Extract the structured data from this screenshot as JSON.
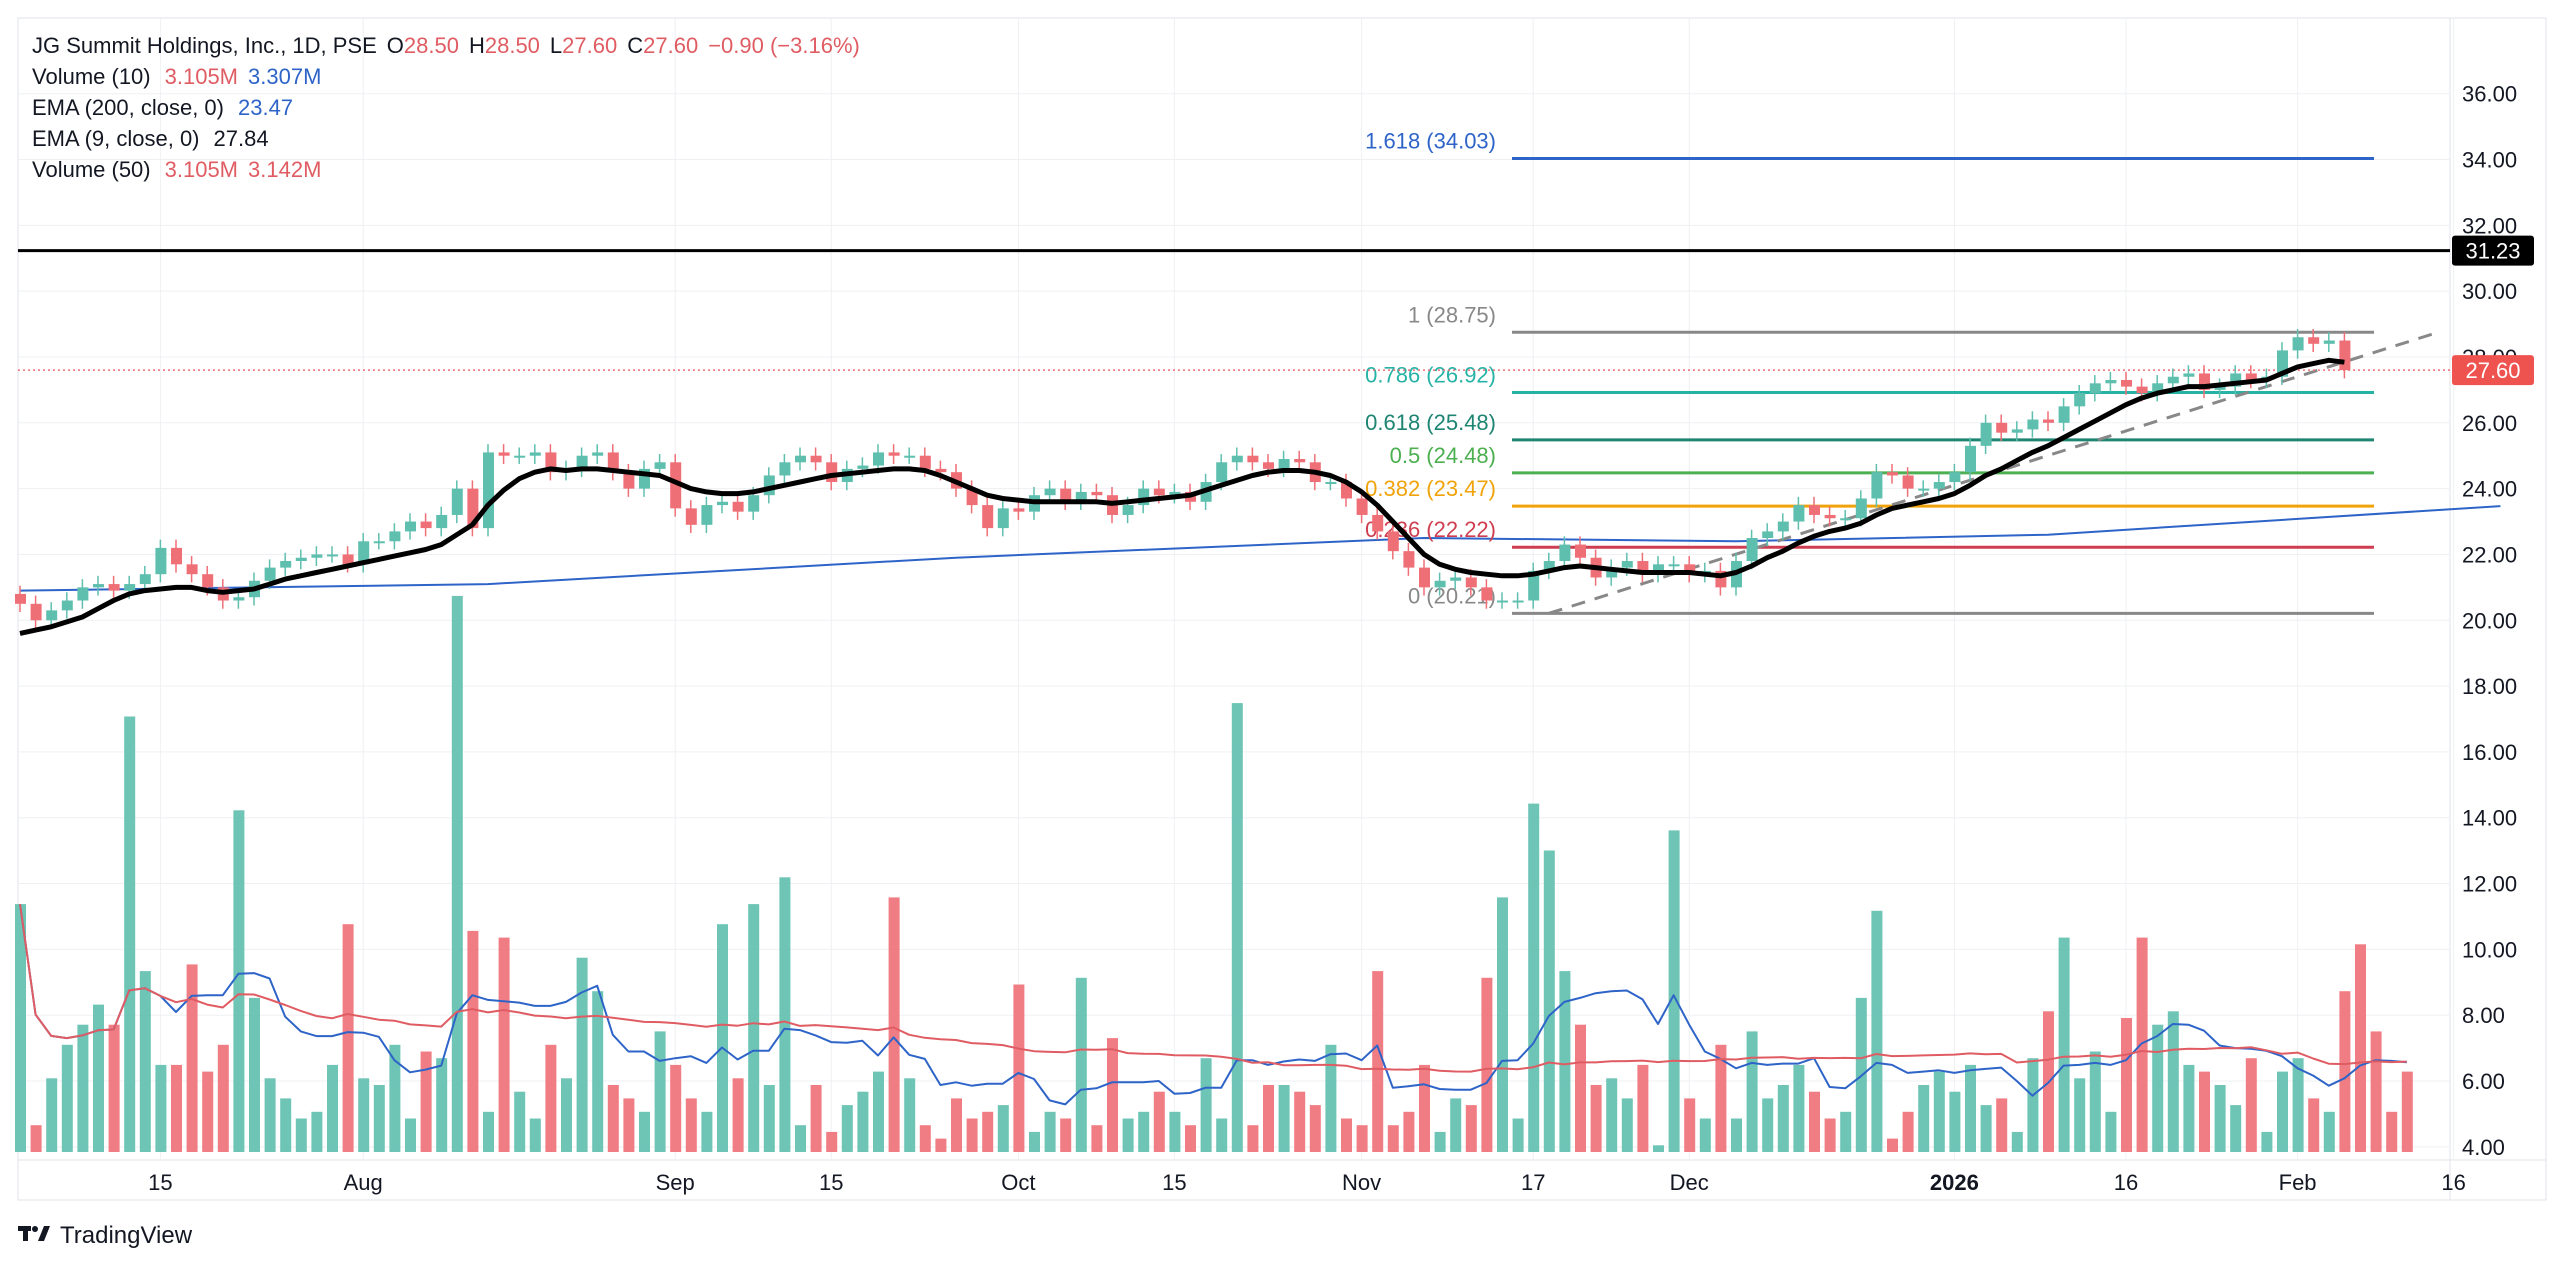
{
  "legend": {
    "symbol": "JG Summit Holdings, Inc., 1D, PSE",
    "ohlc": [
      {
        "label": "O",
        "value": "28.50"
      },
      {
        "label": "H",
        "value": "28.50"
      },
      {
        "label": "L",
        "value": "27.60"
      },
      {
        "label": "C",
        "value": "27.60"
      }
    ],
    "change": "−0.90 (−3.16%)",
    "indicators": [
      {
        "name": "Volume (10)",
        "v1": "3.105M",
        "v2": "3.307M",
        "c1": "#e05c63",
        "c2": "#2e64c8"
      },
      {
        "name": "EMA (200, close, 0)",
        "v1": "23.47",
        "c1": "#2e64c8"
      },
      {
        "name": "EMA (9, close, 0)",
        "v1": "27.84",
        "c1": "#131722"
      },
      {
        "name": "Volume (50)",
        "v1": "3.105M",
        "v2": "3.142M",
        "c1": "#e05c63",
        "c2": "#e05c63"
      }
    ]
  },
  "brand": "TradingView",
  "colors": {
    "up": "#5ebfae",
    "down": "#ef6f77",
    "grid": "#eef0f3",
    "text": "#131722"
  },
  "chart_data": {
    "type": "candlestick",
    "price_axis": {
      "ticks": [
        "36.00",
        "34.00",
        "32.00",
        "30.00",
        "28.00",
        "26.00",
        "24.00",
        "22.00",
        "20.00",
        "18.00",
        "16.00",
        "14.00",
        "12.00",
        "10.00",
        "8.00",
        "6.00",
        "4.00"
      ],
      "range": [
        3.6,
        38.3
      ]
    },
    "time_axis": {
      "ticks": [
        {
          "label": "15",
          "i": 9
        },
        {
          "label": "Aug",
          "i": 22
        },
        {
          "label": "Sep",
          "i": 42
        },
        {
          "label": "15",
          "i": 52
        },
        {
          "label": "Oct",
          "i": 64
        },
        {
          "label": "15",
          "i": 74
        },
        {
          "label": "Nov",
          "i": 86
        },
        {
          "label": "17",
          "i": 97
        },
        {
          "label": "Dec",
          "i": 107
        },
        {
          "label": "2026",
          "i": 124,
          "bold": true
        },
        {
          "label": "16",
          "i": 135
        },
        {
          "label": "Feb",
          "i": 146
        },
        {
          "label": "16",
          "i": 156
        }
      ]
    },
    "last_price": {
      "label": "27.60",
      "value": 27.6
    },
    "horizontal_line": {
      "label": "31.23",
      "value": 31.23
    },
    "fibonacci": [
      {
        "label": "1.618 (34.03)",
        "value": 34.03,
        "color": "#2e64c8"
      },
      {
        "label": "1 (28.75)",
        "value": 28.75,
        "color": "#888888"
      },
      {
        "label": "0.786 (26.92)",
        "value": 26.92,
        "color": "#26b3a6"
      },
      {
        "label": "0.618 (25.48)",
        "value": 25.48,
        "color": "#1e8572"
      },
      {
        "label": "0.5 (24.48)",
        "value": 24.48,
        "color": "#4caf50"
      },
      {
        "label": "0.382 (23.47)",
        "value": 23.47,
        "color": "#f0a30a"
      },
      {
        "label": "0.236 (22.22)",
        "value": 22.22,
        "color": "#cf3e50"
      },
      {
        "label": "0 (20.21)",
        "value": 20.21,
        "color": "#888888"
      }
    ],
    "closes": [
      20.5,
      20.0,
      20.3,
      20.6,
      21.0,
      21.1,
      20.9,
      21.1,
      21.4,
      22.2,
      21.7,
      21.4,
      21.0,
      20.6,
      20.7,
      21.2,
      21.6,
      21.8,
      21.9,
      22.0,
      22.0,
      21.7,
      22.4,
      22.4,
      22.7,
      23.0,
      22.8,
      23.2,
      24.0,
      22.8,
      25.1,
      25.0,
      25.0,
      25.1,
      24.5,
      24.6,
      25.0,
      25.1,
      24.5,
      24.0,
      24.6,
      24.8,
      23.4,
      22.9,
      23.5,
      23.6,
      23.3,
      23.8,
      24.4,
      24.8,
      25.0,
      24.8,
      24.2,
      24.6,
      24.7,
      25.1,
      25.0,
      25.0,
      24.6,
      24.5,
      24.0,
      23.5,
      22.8,
      23.4,
      23.3,
      23.8,
      24.0,
      23.6,
      23.9,
      23.8,
      23.2,
      23.5,
      24.0,
      23.8,
      23.9,
      23.6,
      24.2,
      24.8,
      25.0,
      24.8,
      24.6,
      24.9,
      24.8,
      24.2,
      24.2,
      23.7,
      23.2,
      22.7,
      22.1,
      21.6,
      21.0,
      21.2,
      21.3,
      21.0,
      20.6,
      20.6,
      20.6,
      21.5,
      21.8,
      22.3,
      21.9,
      21.3,
      21.6,
      21.8,
      21.4,
      21.7,
      21.7,
      21.4,
      21.5,
      21.0,
      21.8,
      22.5,
      22.7,
      23.0,
      23.5,
      23.2,
      23.1,
      23.1,
      23.7,
      24.5,
      24.4,
      24.0,
      24.0,
      24.2,
      24.5,
      25.3,
      26.0,
      25.7,
      25.8,
      26.1,
      26.0,
      26.5,
      26.9,
      27.2,
      27.3,
      27.1,
      26.9,
      27.2,
      27.4,
      27.5,
      27.0,
      27.1,
      27.5,
      27.3,
      27.4,
      28.2,
      28.6,
      28.4,
      28.5,
      27.6
    ],
    "ema9": [
      19.6,
      19.7,
      19.8,
      19.95,
      20.1,
      20.35,
      20.6,
      20.8,
      20.9,
      20.95,
      21.0,
      21.0,
      20.9,
      20.85,
      20.9,
      20.95,
      21.1,
      21.25,
      21.35,
      21.45,
      21.55,
      21.65,
      21.75,
      21.85,
      21.95,
      22.05,
      22.15,
      22.3,
      22.6,
      22.9,
      23.5,
      23.95,
      24.3,
      24.5,
      24.6,
      24.55,
      24.6,
      24.6,
      24.55,
      24.5,
      24.45,
      24.4,
      24.2,
      24.0,
      23.9,
      23.85,
      23.85,
      23.9,
      24.0,
      24.1,
      24.2,
      24.3,
      24.4,
      24.45,
      24.5,
      24.55,
      24.6,
      24.6,
      24.55,
      24.4,
      24.2,
      24.0,
      23.8,
      23.7,
      23.65,
      23.6,
      23.6,
      23.6,
      23.6,
      23.6,
      23.55,
      23.6,
      23.65,
      23.7,
      23.75,
      23.8,
      23.95,
      24.1,
      24.25,
      24.4,
      24.5,
      24.55,
      24.55,
      24.5,
      24.4,
      24.2,
      23.9,
      23.5,
      23.0,
      22.5,
      22.0,
      21.7,
      21.55,
      21.45,
      21.4,
      21.35,
      21.35,
      21.4,
      21.5,
      21.6,
      21.65,
      21.6,
      21.55,
      21.5,
      21.45,
      21.45,
      21.45,
      21.45,
      21.4,
      21.35,
      21.45,
      21.65,
      21.9,
      22.1,
      22.35,
      22.55,
      22.7,
      22.8,
      22.95,
      23.2,
      23.4,
      23.5,
      23.6,
      23.7,
      23.85,
      24.1,
      24.4,
      24.6,
      24.85,
      25.1,
      25.3,
      25.55,
      25.8,
      26.05,
      26.3,
      26.55,
      26.75,
      26.9,
      27.0,
      27.1,
      27.1,
      27.15,
      27.2,
      27.25,
      27.3,
      27.5,
      27.7,
      27.8,
      27.9,
      27.84
    ],
    "ema200": [
      {
        "i": 0,
        "v": 20.9
      },
      {
        "i": 30,
        "v": 21.1
      },
      {
        "i": 60,
        "v": 21.9
      },
      {
        "i": 90,
        "v": 22.5
      },
      {
        "i": 110,
        "v": 22.4
      },
      {
        "i": 130,
        "v": 22.6
      },
      {
        "i": 159,
        "v": 23.47
      }
    ],
    "volume": [
      7.7,
      4.4,
      5.1,
      5.6,
      5.9,
      6.2,
      5.9,
      10.5,
      6.7,
      5.3,
      5.3,
      6.8,
      5.2,
      5.6,
      9.1,
      6.3,
      5.1,
      4.8,
      4.5,
      4.6,
      5.3,
      7.4,
      5.1,
      5.0,
      5.6,
      4.5,
      5.5,
      5.4,
      12.3,
      7.3,
      4.6,
      7.2,
      4.9,
      4.5,
      5.6,
      5.1,
      6.9,
      6.4,
      5.0,
      4.8,
      4.6,
      5.8,
      5.3,
      4.8,
      4.6,
      7.4,
      5.1,
      7.7,
      5.0,
      8.1,
      4.4,
      5.0,
      4.3,
      4.7,
      4.9,
      5.2,
      7.8,
      5.1,
      4.4,
      4.2,
      4.8,
      4.5,
      4.6,
      4.7,
      6.5,
      4.3,
      4.6,
      4.5,
      6.6,
      4.4,
      5.7,
      4.5,
      4.6,
      4.9,
      4.6,
      4.4,
      5.4,
      4.5,
      10.7,
      4.4,
      5.0,
      5.0,
      4.9,
      4.7,
      5.6,
      4.5,
      4.4,
      6.7,
      4.4,
      4.6,
      5.3,
      4.3,
      4.8,
      4.7,
      6.6,
      7.8,
      4.5,
      9.2,
      8.5,
      6.7,
      5.9,
      5.0,
      5.1,
      4.8,
      5.3,
      4.1,
      8.8,
      4.8,
      4.5,
      5.6,
      4.5,
      5.8,
      4.8,
      5.0,
      5.3,
      4.9,
      4.5,
      4.6,
      6.3,
      7.6,
      4.2,
      4.6,
      5.0,
      5.2,
      4.9,
      5.3,
      4.7,
      4.8,
      4.3,
      5.4,
      6.1,
      7.2,
      5.1,
      5.5,
      4.6,
      6.0,
      7.2,
      5.9,
      6.1,
      5.3,
      5.2,
      5.0,
      4.7,
      5.4,
      4.3,
      5.2,
      5.4,
      4.8,
      4.6,
      6.4,
      7.1,
      5.8,
      4.6,
      5.2
    ]
  }
}
